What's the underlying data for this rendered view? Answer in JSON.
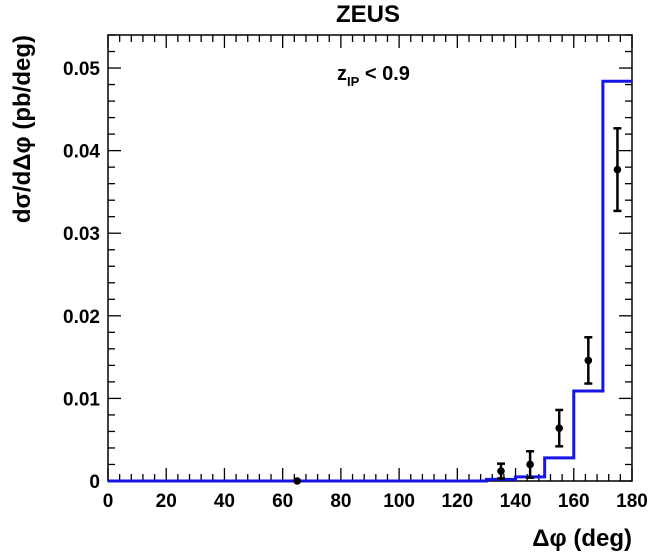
{
  "chart_data": {
    "type": "line",
    "title": "ZEUS",
    "annotation": {
      "main": "z",
      "sub": "IP",
      "rest": " < 0.9"
    },
    "xlabel": "Δφ (deg)",
    "ylabel": "dσ/dΔφ (pb/deg)",
    "xlim": [
      0,
      180
    ],
    "ylim": [
      0,
      0.054
    ],
    "x_ticks": [
      0,
      20,
      40,
      60,
      80,
      100,
      120,
      140,
      160,
      180
    ],
    "y_ticks": [
      0,
      0.01,
      0.02,
      0.03,
      0.04,
      0.05
    ],
    "y_tick_labels": [
      "0",
      "0.01",
      "0.02",
      "0.03",
      "0.04",
      "0.05"
    ],
    "grid": false,
    "colors": {
      "histogram": "#1515e6",
      "points": "#000000"
    },
    "series": [
      {
        "kind": "histogram",
        "bin_edges": [
          0,
          130,
          140,
          150,
          160,
          170,
          180
        ],
        "values": [
          0,
          0.0002,
          0.0005,
          0.0028,
          0.0109,
          0.0484
        ]
      },
      {
        "kind": "points-with-errors",
        "points": [
          {
            "x": 65,
            "y": 0.0,
            "err": 0.0
          },
          {
            "x": 135,
            "y": 0.0012,
            "err": 0.0009
          },
          {
            "x": 145,
            "y": 0.002,
            "err": 0.0016
          },
          {
            "x": 155,
            "y": 0.0064,
            "err": 0.0022
          },
          {
            "x": 165,
            "y": 0.0146,
            "err": 0.0028
          },
          {
            "x": 175,
            "y": 0.0377,
            "err": 0.005
          }
        ]
      }
    ]
  }
}
